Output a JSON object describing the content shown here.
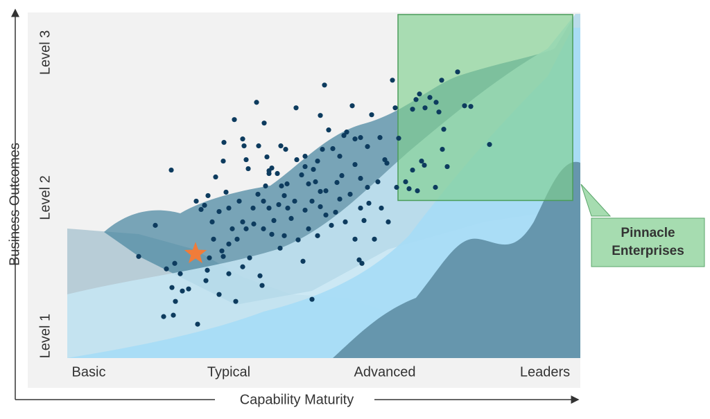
{
  "chart_data": {
    "type": "scatter",
    "xlabel": "Capability Maturity",
    "ylabel": "Business Outcomes",
    "xlim": [
      0,
      148
    ],
    "ylim": [
      0,
      100
    ],
    "xticks": [
      {
        "value": 6.2,
        "label": "Basic"
      },
      {
        "value": 46.6,
        "label": "Typical"
      },
      {
        "value": 91.6,
        "label": "Advanced"
      },
      {
        "value": 137.8,
        "label": "Leaders"
      }
    ],
    "yticks": [
      {
        "value": 6.4,
        "label": "Level 1"
      },
      {
        "value": 46.4,
        "label": "Level 2"
      },
      {
        "value": 88.4,
        "label": "Level 3"
      }
    ],
    "color": "#0d3b5e",
    "x": [
      20.6,
      25.4,
      30,
      28.6,
      31,
      27.8,
      30.6,
      30.2,
      32.6,
      33.2,
      31.2,
      37.6,
      35,
      37.2,
      38.6,
      39.6,
      40.6,
      40,
      40.4,
      42.8,
      45,
      45.2,
      45.8,
      41.8,
      43.8,
      46.6,
      48.2,
      50.6,
      51,
      51.6,
      52.2,
      54.6,
      55.2,
      56.8,
      57.6,
      58.2,
      59,
      61.6,
      61.8,
      63,
      62.6,
      63.4,
      66,
      66.2,
      67.6,
      68.6,
      69.6,
      71,
      71.6,
      72.2,
      73,
      73,
      73.6,
      74.2,
      75.4,
      76.6,
      77.8,
      79.2,
      79.8,
      80.6,
      82.2,
      83,
      84.6,
      86.6,
      87.8,
      90.2,
      91.6,
      92.2,
      93.8,
      94.6,
      95.6,
      99.6,
      100.6,
      101.6,
      102.2,
      103.2,
      104.6,
      106.4,
      108,
      108.6,
      107.2,
      108.2,
      109.6,
      112.6,
      114.6,
      116.4,
      121.8,
      106.2,
      101,
      98.6,
      103,
      99.6,
      50.6,
      52.6,
      55.6,
      56.2,
      48.6,
      43.8,
      41,
      44.6,
      46.6,
      49,
      51.6,
      53.8,
      56.6,
      59,
      61.4,
      62.6,
      64.6,
      66.6,
      68,
      69.6,
      70.6,
      72.2,
      73,
      74.6,
      76.2,
      77.4,
      78.6,
      80.2,
      81.6,
      83,
      84.6,
      85.6,
      87,
      88.6,
      89.6,
      84.2,
      85,
      90.6,
      92.6,
      95,
      97.6,
      56.6,
      58.2,
      59.6,
      61,
      63.6,
      65.6,
      68.6,
      70.6,
      74.6,
      50.6,
      47.6,
      49.6,
      53.6,
      55,
      57.2,
      42.2,
      45,
      46.6,
      58.2,
      60.6,
      68.6,
      78.6,
      83,
      84.6,
      86.6
    ],
    "y": [
      29.4,
      38.4,
      54.4,
      25.8,
      27.4,
      12,
      12.4,
      20.4,
      24.4,
      19.4,
      16.4,
      9.8,
      20,
      45.4,
      43,
      44.2,
      47,
      22.4,
      25.4,
      52.4,
      57,
      62.4,
      48,
      39.4,
      42.4,
      43.4,
      69,
      63.4,
      61.4,
      57.4,
      54.8,
      74,
      61.4,
      68,
      58.2,
      54.2,
      55,
      61.4,
      49.8,
      60.4,
      47,
      50.4,
      72.4,
      57.4,
      53,
      55.4,
      50.4,
      54.6,
      51,
      57,
      70.2,
      48.2,
      60.4,
      79,
      66,
      60.6,
      50.8,
      52.8,
      64.4,
      65.4,
      73,
      63.4,
      63.8,
      61.2,
      70.4,
      63.8,
      57.4,
      56.4,
      80.4,
      72.4,
      63.6,
      72,
      74.8,
      76.4,
      57,
      72.4,
      75.4,
      74,
      80.4,
      66.2,
      71.2,
      60.4,
      55.4,
      82.8,
      73,
      72.8,
      61.8,
      49.4,
      48.4,
      49,
      55.8,
      54.4,
      26.4,
      29,
      23.8,
      21,
      16.4,
      18.4,
      29,
      31,
      33,
      34.4,
      37.4,
      38.8,
      37.4,
      35.8,
      31.8,
      35.4,
      40.4,
      34.2,
      28,
      37.4,
      17,
      35.4,
      43.8,
      41.4,
      38.4,
      42.2,
      46,
      39.4,
      47.4,
      34.4,
      43.4,
      39.8,
      44.8,
      34.4,
      51,
      28.4,
      27.4,
      43.4,
      39.4,
      49.4,
      51,
      45.4,
      43.4,
      39.8,
      44.4,
      43.4,
      45.4,
      42.8,
      45.4,
      48.4,
      39.4,
      37.4,
      45.4,
      43.4,
      47.4,
      49.8,
      34.4,
      29.4,
      24.4,
      53.4,
      53.4,
      58.4,
      58.4,
      56,
      52,
      49.4
    ],
    "highlight": {
      "x": 37,
      "y": 30.2,
      "color": "#f07c3a"
    },
    "region": {
      "label": "Pinnacle Enterprises",
      "xlim": [
        95.4,
        145.8
      ],
      "ylim": [
        45.6,
        99.4
      ],
      "color": "#7fcf8f"
    }
  }
}
